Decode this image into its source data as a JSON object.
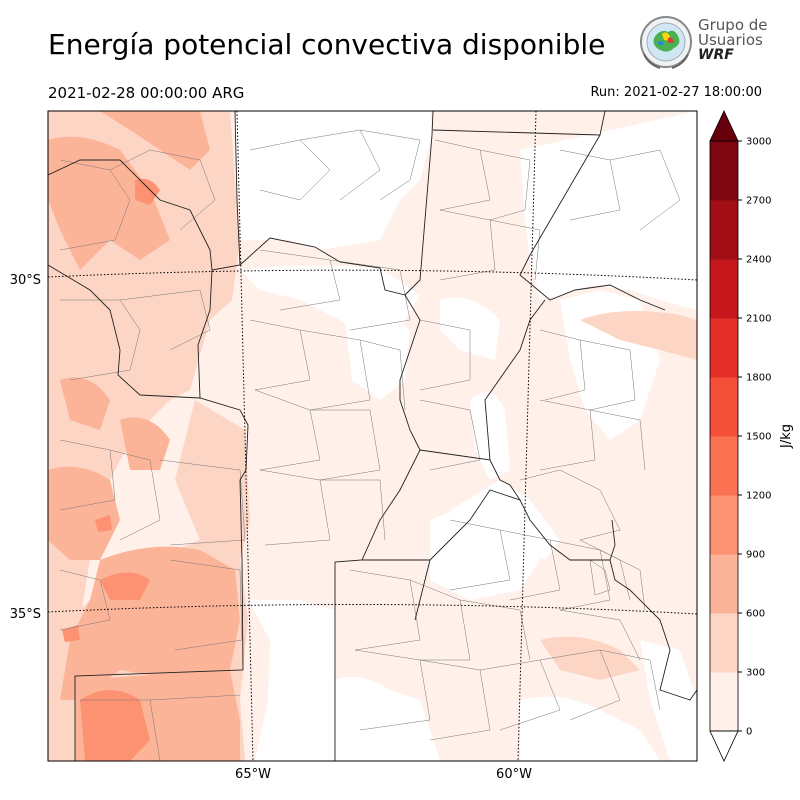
{
  "header": {
    "title": "Energía potencial convectiva disponible",
    "valid_time": "2021-02-28 00:00:00 ARG",
    "run_time": "Run: 2021-02-27 18:00:00"
  },
  "logo": {
    "line1": "Grupo de",
    "line2": "Usuarios",
    "line3": "WRF"
  },
  "map": {
    "lat_labels": [
      "30°S",
      "35°S"
    ],
    "lon_labels": [
      "65°W",
      "60°W"
    ]
  },
  "colorbar": {
    "unit": "J/kg",
    "ticks": [
      "0",
      "300",
      "600",
      "900",
      "1200",
      "1500",
      "1800",
      "2100",
      "2400",
      "2700",
      "3000"
    ],
    "colors": [
      "#fff0e9",
      "#fdd5c4",
      "#fcb499",
      "#fc9272",
      "#fb7252",
      "#f44f39",
      "#e32f27",
      "#c5171c",
      "#a10f15",
      "#7f0510"
    ],
    "over_color": "#67000d",
    "under_color": "#ffffff"
  },
  "palette": {
    "level_1": "#fff0e9",
    "level_2": "#fdd5c4",
    "level_3": "#fcb499",
    "level_4": "#fc9272"
  }
}
